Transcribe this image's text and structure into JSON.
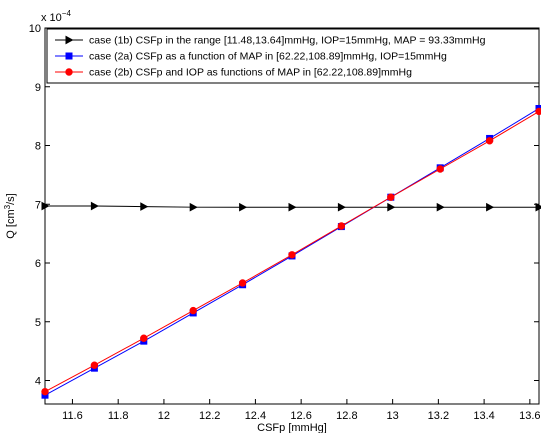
{
  "chart_data": {
    "type": "line",
    "xlabel": "CSFp [mmHg]",
    "ylabel": "Q [cm",
    "ylabel_sup": "3",
    "ylabel_tail": "/s]",
    "y_multiplier_base": "x 10",
    "y_multiplier_exp": "−4",
    "xlim": [
      11.48,
      13.64
    ],
    "ylim": [
      3.6,
      10
    ],
    "xticks": [
      11.6,
      11.8,
      12,
      12.2,
      12.4,
      12.6,
      12.8,
      13,
      13.2,
      13.4,
      13.6
    ],
    "xtick_labels": [
      "11.6",
      "11.8",
      "12",
      "12.2",
      "12.4",
      "12.6",
      "12.8",
      "13",
      "13.2",
      "13.4",
      "13.6"
    ],
    "yticks": [
      4,
      5,
      6,
      7,
      8,
      9,
      10
    ],
    "ytick_labels": [
      "4",
      "5",
      "6",
      "7",
      "8",
      "9",
      "10"
    ],
    "grid": false,
    "legend_position": "top",
    "series": [
      {
        "name": "case (1b) CSFp in the range [11.48,13.64]mmHg, IOP=15mmHg, MAP = 93.33mmHg",
        "color": "#000000",
        "marker": "triangle-right",
        "x": [
          11.48,
          11.696,
          11.912,
          12.128,
          12.344,
          12.56,
          12.776,
          12.992,
          13.208,
          13.424,
          13.64
        ],
        "y": [
          6.97,
          6.97,
          6.96,
          6.95,
          6.95,
          6.95,
          6.95,
          6.95,
          6.95,
          6.95,
          6.95
        ]
      },
      {
        "name": "case (2a) CSFp as a  function of MAP in [62.22,108.89]mmHg, IOP=15mmHg",
        "color": "#0000ff",
        "marker": "square",
        "x": [
          11.48,
          11.696,
          11.912,
          12.128,
          12.344,
          12.56,
          12.776,
          12.992,
          13.208,
          13.424,
          13.64
        ],
        "y": [
          3.75,
          4.21,
          4.67,
          5.15,
          5.63,
          6.12,
          6.62,
          7.12,
          7.62,
          8.12,
          8.63
        ]
      },
      {
        "name": "case (2b) CSFp and IOP as functions of MAP in [62.22,108.89]mmHg",
        "color": "#ff0000",
        "marker": "circle",
        "x": [
          11.48,
          11.696,
          11.912,
          12.128,
          12.344,
          12.56,
          12.776,
          12.992,
          13.208,
          13.424,
          13.64
        ],
        "y": [
          3.81,
          4.26,
          4.72,
          5.19,
          5.66,
          6.14,
          6.63,
          7.12,
          7.6,
          8.08,
          8.58
        ]
      }
    ]
  }
}
